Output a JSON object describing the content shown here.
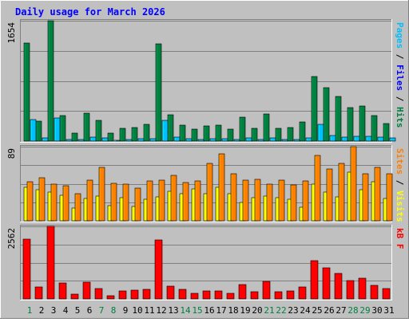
{
  "chart_data": {
    "type": "bar",
    "title": "Daily usage for March 2026",
    "categories": [
      "1",
      "2",
      "3",
      "4",
      "5",
      "6",
      "7",
      "8",
      "9",
      "10",
      "11",
      "12",
      "13",
      "14",
      "15",
      "16",
      "17",
      "18",
      "19",
      "20",
      "21",
      "22",
      "23",
      "24",
      "25",
      "26",
      "27",
      "28",
      "29",
      "30",
      "31"
    ],
    "weekend_days": [
      "1",
      "7",
      "8",
      "14",
      "15",
      "21",
      "22",
      "28",
      "29"
    ],
    "panels": [
      {
        "name": "pages-files-hits",
        "ymax_label": "1654",
        "ymax": 1654,
        "axis_legend": [
          {
            "text": "Pages",
            "color": "#00c0ff"
          },
          {
            "text": " / ",
            "color": "#000000"
          },
          {
            "text": "Files",
            "color": "#0000ff"
          },
          {
            "text": " / ",
            "color": "#000000"
          },
          {
            "text": "Hits",
            "color": "#008040"
          }
        ],
        "series": [
          {
            "name": "Hits",
            "color": "#008040",
            "values": [
              1345,
              277,
              1654,
              348,
              115,
              378,
              286,
              108,
              180,
              187,
              234,
              1336,
              356,
              217,
              168,
              207,
              217,
              168,
              326,
              180,
              373,
              178,
              187,
              258,
              890,
              736,
              609,
              460,
              484,
              349,
              244
            ]
          },
          {
            "name": "Files",
            "color": "#0000ff",
            "values": [
              0,
              0,
              0,
              0,
              0,
              0,
              0,
              0,
              0,
              0,
              0,
              0,
              0,
              0,
              0,
              0,
              0,
              0,
              0,
              0,
              0,
              0,
              0,
              0,
              0,
              0,
              0,
              0,
              0,
              0,
              0
            ]
          },
          {
            "name": "Pages",
            "color": "#00c0ff",
            "values": [
              300,
              45,
              320,
              25,
              20,
              60,
              40,
              15,
              25,
              30,
              35,
              285,
              50,
              30,
              25,
              35,
              30,
              25,
              45,
              25,
              45,
              25,
              25,
              40,
              230,
              75,
              60,
              70,
              65,
              50,
              40
            ]
          }
        ]
      },
      {
        "name": "visits-sites",
        "ymax_label": "89",
        "ymax": 89,
        "axis_legend": [
          {
            "text": "Sites",
            "color": "#ff8000"
          },
          {
            "text": " / ",
            "color": "#000000"
          },
          {
            "text": "Visits",
            "color": "#ffff00"
          }
        ],
        "series": [
          {
            "name": "Visits",
            "color": "#ffff00",
            "values": [
              40,
              37,
              34,
              31,
              15,
              27,
              30,
              18,
              28,
              17,
              26,
              29,
              35,
              33,
              38,
              33,
              40,
              33,
              22,
              28,
              30,
              28,
              26,
              16,
              44,
              34,
              29,
              58,
              37,
              47,
              27
            ]
          },
          {
            "name": "Sites",
            "color": "#ff8000",
            "values": [
              47,
              52,
              44,
              42,
              33,
              49,
              64,
              45,
              44,
              39,
              48,
              49,
              55,
              46,
              48,
              69,
              80,
              56,
              49,
              50,
              44,
              49,
              43,
              48,
              78,
              62,
              69,
              89,
              56,
              64,
              56
            ]
          }
        ]
      },
      {
        "name": "kbf",
        "ymax_label": "2562",
        "ymax": 2562,
        "axis_legend": [
          {
            "text": "kB F",
            "color": "#ff0000"
          }
        ],
        "series": [
          {
            "name": "kB F",
            "color": "#ff0000",
            "values": [
              2120,
              420,
              2562,
              560,
              170,
              600,
              380,
              110,
              290,
              310,
              340,
              2080,
              460,
              350,
              200,
              280,
              280,
              210,
              510,
              260,
              610,
              250,
              270,
              410,
              1340,
              1100,
              910,
              650,
              730,
              480,
              360
            ]
          }
        ]
      }
    ]
  }
}
